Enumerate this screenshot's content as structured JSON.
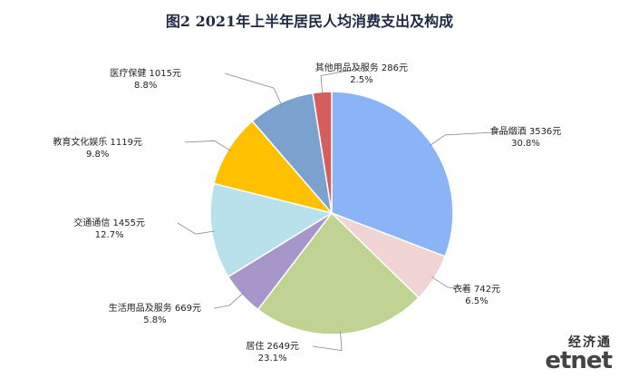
{
  "chart_data": {
    "type": "pie",
    "title": "图2 2021年上半年居民人均消费支出及构成",
    "slices": [
      {
        "label": "食品烟酒",
        "value": 3536,
        "percent": "30.8%",
        "color": "#8bb4f7"
      },
      {
        "label": "衣着",
        "value": 742,
        "percent": "6.5%",
        "color": "#f0d3d3"
      },
      {
        "label": "居住",
        "value": 2649,
        "percent": "23.1%",
        "color": "#c1d393"
      },
      {
        "label": "生活用品及服务",
        "value": 669,
        "percent": "5.8%",
        "color": "#a796c9"
      },
      {
        "label": "交通通信",
        "value": 1455,
        "percent": "12.7%",
        "color": "#b8e1eb"
      },
      {
        "label": "教育文化娱乐",
        "value": 1119,
        "percent": "9.8%",
        "color": "#ffc000"
      },
      {
        "label": "医疗保健",
        "value": 1015,
        "percent": "8.8%",
        "color": "#7ba1cf"
      },
      {
        "label": "其他用品及服务",
        "value": 286,
        "percent": "2.5%",
        "color": "#d65d5d"
      }
    ],
    "unit": "元",
    "start_angle": "12 o'clock",
    "direction": "clockwise"
  },
  "watermark": {
    "cn": "经济通",
    "en": "etnet"
  }
}
